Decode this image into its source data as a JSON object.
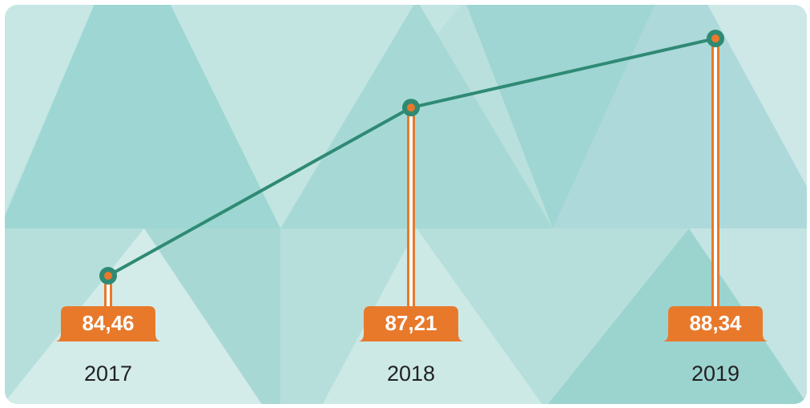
{
  "chart_data": {
    "type": "line",
    "categories": [
      "2017",
      "2018",
      "2019"
    ],
    "values": [
      84.46,
      87.21,
      88.34
    ],
    "value_labels": [
      "84,46",
      "87,21",
      "88,34"
    ],
    "color": "#2f8a74"
  }
}
